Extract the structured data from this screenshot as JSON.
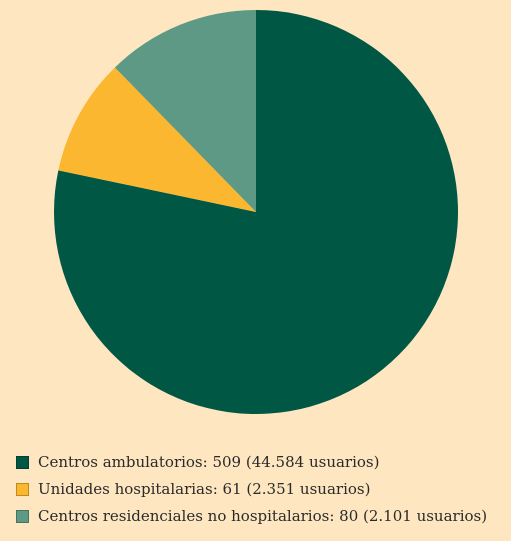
{
  "chart_data": {
    "type": "pie",
    "categories": [
      "Centros ambulatorios",
      "Unidades hospitalarias",
      "Centros residenciales no hospitalarios"
    ],
    "values": [
      509,
      61,
      80
    ],
    "colors": [
      "#005744",
      "#fbb72f",
      "#5e9985"
    ],
    "start_angle": "top",
    "direction": "clockwise",
    "legend_position": "bottom-left"
  },
  "legend": {
    "items": [
      {
        "label": "Centros ambulatorios: 509 (44.584 usuarios)",
        "color": "#005744"
      },
      {
        "label": "Unidades hospitalarias: 61 (2.351 usuarios)",
        "color": "#fbb72f"
      },
      {
        "label": "Centros residenciales no hospitalarios: 80 (2.101 usuarios)",
        "color": "#5e9985"
      }
    ]
  }
}
